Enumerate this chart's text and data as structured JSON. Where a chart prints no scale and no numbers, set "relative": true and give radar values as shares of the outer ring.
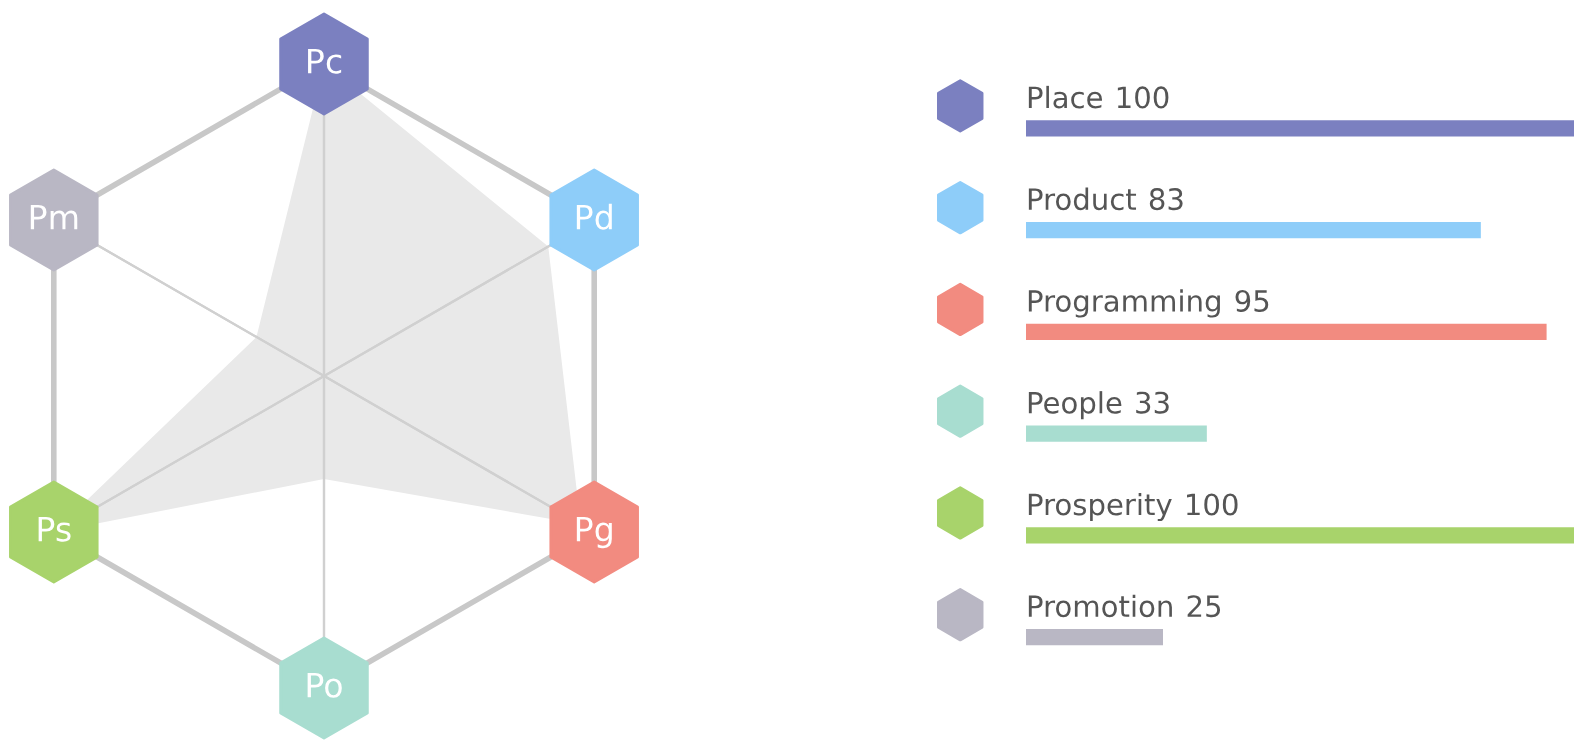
{
  "chart_data": [
    {
      "type": "radar",
      "categories": [
        "Pc",
        "Pd",
        "Pg",
        "Po",
        "Ps",
        "Pm"
      ],
      "relative": true,
      "colors": [
        "#7b80c0",
        "#8ecdf9",
        "#f28b80",
        "#a8ddd0",
        "#a8d36b",
        "#b9b7c4"
      ],
      "series": [
        {
          "color": "#e9e9e9",
          "values": [
            1,
            0.83,
            0.95,
            0.33,
            1,
            0.25
          ]
        }
      ]
    },
    {
      "type": "bar",
      "orientation": "horizontal",
      "categories": [
        "Place",
        "Product",
        "Programming",
        "People",
        "Prosperity",
        "Promotion"
      ],
      "values": [
        100,
        83,
        95,
        33,
        100,
        25
      ],
      "colors": [
        "#7b80c0",
        "#8ecdf9",
        "#f28b80",
        "#a8ddd0",
        "#a8d36b",
        "#b9b7c4"
      ],
      "data_labels": true
    }
  ]
}
